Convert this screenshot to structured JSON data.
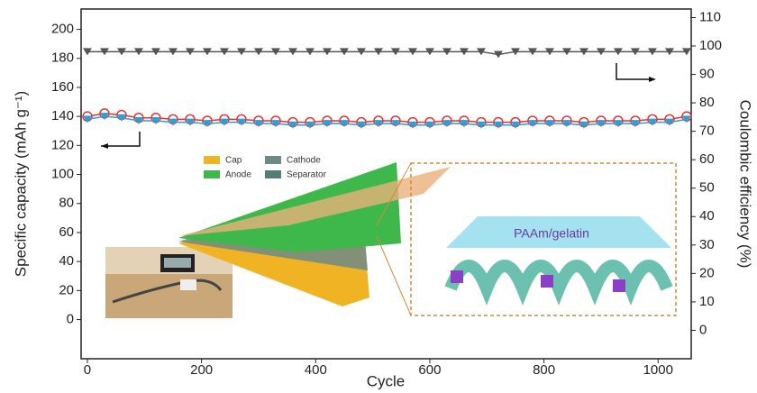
{
  "chart_data": {
    "type": "line",
    "xlabel": "Cycle",
    "ylabel": "Specific capacity (mAh g⁻¹)",
    "y2label": "Coulombic efficiency (%)",
    "annotations": [
      "Cap",
      "Anode",
      "Cathode",
      "Separator",
      "PAAm/gelatin"
    ],
    "x": [
      0,
      30,
      60,
      90,
      120,
      150,
      180,
      210,
      240,
      270,
      300,
      330,
      360,
      390,
      420,
      450,
      480,
      510,
      540,
      570,
      600,
      630,
      660,
      690,
      720,
      750,
      780,
      810,
      840,
      870,
      900,
      930,
      960,
      990,
      1020,
      1050
    ],
    "series": [
      {
        "color": "#e8312f",
        "values": [
          140,
          142,
          141,
          139,
          139,
          138,
          138,
          137,
          138,
          138,
          137,
          137,
          136,
          136,
          137,
          137,
          136,
          137,
          137,
          136,
          136,
          137,
          137,
          136,
          136,
          136,
          137,
          137,
          137,
          136,
          137,
          137,
          137,
          138,
          138,
          140
        ]
      },
      {
        "color": "#2a9fd8",
        "values": [
          138,
          140,
          139,
          137,
          137,
          136,
          136,
          135,
          136,
          136,
          135,
          135,
          134,
          134,
          135,
          135,
          134,
          135,
          135,
          134,
          134,
          135,
          135,
          134,
          134,
          134,
          135,
          135,
          135,
          134,
          135,
          135,
          135,
          136,
          136,
          138
        ]
      },
      {
        "color": "#555555",
        "axis": "y2",
        "values": [
          98,
          98,
          98,
          98,
          98,
          98,
          98,
          98,
          98,
          98,
          98,
          98,
          98,
          98,
          98,
          98,
          98,
          98,
          98,
          98,
          98,
          98,
          98,
          98,
          97,
          98,
          98,
          98,
          98,
          98,
          98,
          98,
          98,
          98,
          98,
          98
        ]
      }
    ],
    "xlim": [
      -11,
      1058
    ],
    "xticks": [
      0,
      200,
      400,
      600,
      800,
      1000
    ],
    "ylim": [
      -27,
      214
    ],
    "yticks": [
      0,
      20,
      40,
      60,
      80,
      100,
      120,
      140,
      160,
      180,
      200
    ],
    "y2lim": [
      -10,
      113
    ],
    "y2ticks": [
      0,
      10,
      20,
      30,
      40,
      50,
      60,
      70,
      80,
      90,
      100,
      110
    ]
  }
}
